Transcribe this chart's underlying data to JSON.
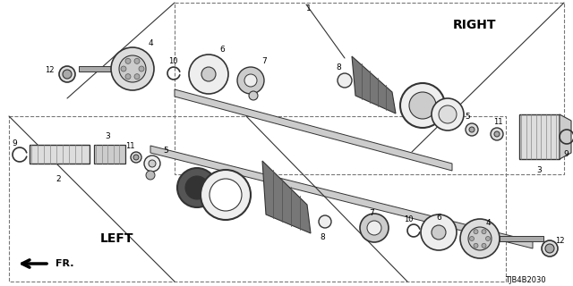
{
  "bg_color": "#ffffff",
  "line_color": "#000000",
  "part_number_label": "TJB4B2030",
  "right_label": "RIGHT",
  "left_label": "LEFT",
  "fr_label": "FR."
}
